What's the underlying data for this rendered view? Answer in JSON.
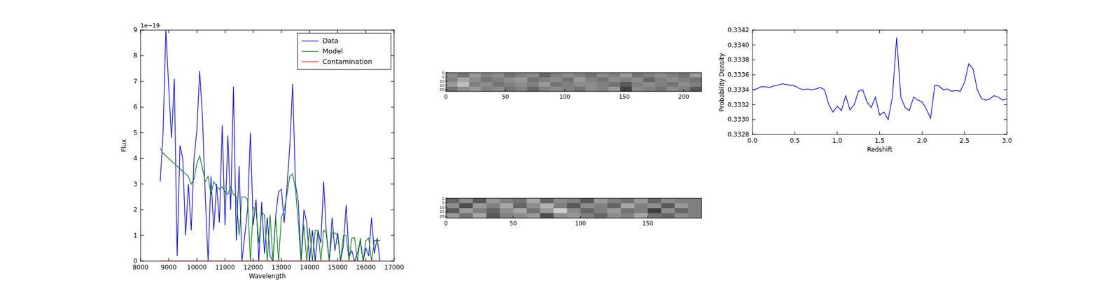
{
  "chart_data": [
    {
      "type": "line",
      "x_label": "Wavelength",
      "y_label": "Flux",
      "annotations": [
        "1e−19"
      ],
      "legend": "upper right",
      "xlim": [
        8000,
        17000
      ],
      "xticks": [
        8000,
        9000,
        10000,
        11000,
        12000,
        13000,
        14000,
        15000,
        16000,
        17000
      ],
      "ylim": [
        0,
        9
      ],
      "yticks": [
        0,
        1,
        2,
        3,
        4,
        5,
        6,
        7,
        8,
        9
      ],
      "x": [
        8700,
        8800,
        8900,
        9000,
        9100,
        9200,
        9300,
        9400,
        9500,
        9600,
        9700,
        9800,
        9900,
        10000,
        10100,
        10200,
        10300,
        10400,
        10500,
        10600,
        10700,
        10800,
        10900,
        11000,
        11100,
        11200,
        11300,
        11400,
        11500,
        11600,
        11700,
        11800,
        11900,
        12000,
        12100,
        12200,
        12300,
        12400,
        12500,
        12600,
        12700,
        12800,
        12900,
        13000,
        13100,
        13200,
        13300,
        13400,
        13500,
        13600,
        13700,
        13800,
        13900,
        14000,
        14100,
        14200,
        14300,
        14400,
        14500,
        14600,
        14700,
        14800,
        14900,
        15000,
        15100,
        15200,
        15300,
        15400,
        15500,
        15600,
        15700,
        15800,
        15900,
        16000,
        16100,
        16200,
        16300,
        16400,
        16500
      ],
      "series": [
        {
          "name": "Data",
          "color": "#0000ff",
          "values": [
            3.1,
            5.0,
            9.0,
            6.8,
            4.8,
            7.1,
            0.2,
            4.5,
            4.0,
            1.0,
            3.0,
            1.2,
            4.0,
            5.1,
            7.4,
            5.6,
            2.5,
            0,
            3.3,
            1.2,
            3.0,
            1.5,
            5.3,
            1.4,
            4.9,
            2.0,
            6.8,
            0.8,
            3.7,
            0,
            1.0,
            2.0,
            5.0,
            1.4,
            2.4,
            0,
            2.3,
            0.3,
            1.7,
            0.2,
            0,
            1.8,
            2.7,
            2.8,
            1.5,
            2.9,
            4.5,
            6.9,
            3.0,
            2.3,
            0,
            2.0,
            1.5,
            0,
            1.2,
            0,
            1.2,
            0.7,
            3.1,
            1.0,
            0,
            1.7,
            0.4,
            1.1,
            0,
            0.6,
            2.2,
            0.2,
            0.4,
            0,
            0.3,
            0.8,
            0,
            0.5,
            0.2,
            1.7,
            0.3,
            0.9,
            0
          ]
        },
        {
          "name": "Model",
          "color": "#008000",
          "values": [
            4.4,
            4.2,
            4.1,
            4.0,
            3.9,
            3.8,
            3.7,
            3.6,
            3.5,
            3.4,
            3.3,
            3.0,
            3.2,
            3.8,
            4.1,
            3.6,
            3.1,
            3.3,
            2.6,
            3.1,
            2.9,
            2.8,
            2.9,
            2.7,
            2.6,
            2.9,
            2.6,
            2.5,
            1.0,
            2.5,
            2.5,
            2.4,
            0,
            2.1,
            2.0,
            0.7,
            1.9,
            1.8,
            0,
            1.8,
            0,
            1.7,
            0,
            1.7,
            2.0,
            2.6,
            3.3,
            3.4,
            2.8,
            1.5,
            0,
            1.4,
            0,
            1.3,
            0,
            1.2,
            1.2,
            0,
            1.2,
            1.1,
            0,
            1.1,
            1.1,
            1.0,
            0,
            1.0,
            1.0,
            0,
            0.9,
            0.9,
            0,
            0.9,
            0,
            0.8,
            0.9,
            0,
            0.8,
            0.8,
            0.8
          ]
        },
        {
          "name": "Contamination",
          "color": "#ff0000",
          "x": [
            8700,
            16500
          ],
          "values": [
            0,
            0
          ]
        }
      ]
    },
    {
      "type": "image",
      "xlim": [
        0,
        215
      ],
      "xticks": [
        0,
        50,
        100,
        150,
        200
      ],
      "ylim": [
        0,
        22
      ],
      "yticks": [
        0,
        5,
        10,
        15,
        20
      ],
      "zlim": [
        -1,
        1
      ],
      "cells": [
        [
          0.1,
          -0.1,
          0.2,
          0,
          0.1,
          -0.1,
          0,
          0.1,
          -0.2,
          0,
          0.1,
          0,
          -0.1,
          0.1,
          0,
          0.2,
          -0.1,
          0,
          0.1,
          0,
          -0.1,
          0.2
        ],
        [
          0,
          0.3,
          0.1,
          -0.1,
          0,
          0.1,
          0.2,
          -0.1,
          0,
          0.1,
          -0.1,
          0.2,
          0,
          -0.1,
          0.1,
          0,
          0.1,
          -0.2,
          0,
          0.1,
          0,
          -0.1
        ],
        [
          0.2,
          0.5,
          0,
          0.1,
          -0.1,
          0,
          0.1,
          0,
          0.2,
          -0.1,
          0,
          0.1,
          0.1,
          0,
          -0.1,
          -0.3,
          0,
          0.1,
          0,
          -0.1,
          0.1,
          0
        ],
        [
          -0.1,
          0.1,
          0.2,
          0,
          0.1,
          -0.1,
          0,
          -0.2,
          0,
          0.1,
          0,
          -0.1,
          0.1,
          0,
          0.2,
          -0.5,
          0.1,
          0,
          -0.1,
          0.1,
          0,
          -0.3
        ]
      ]
    },
    {
      "type": "image",
      "xlim": [
        0,
        190
      ],
      "xticks": [
        0,
        50,
        100,
        150
      ],
      "ylim": [
        0,
        22
      ],
      "yticks": [
        0,
        5,
        10,
        15,
        20
      ],
      "zlim": [
        -1,
        1
      ],
      "cells": [
        [
          -0.2,
          0.1,
          -0.3,
          0.2,
          0,
          -0.1,
          0.3,
          -0.2,
          0.1,
          0,
          -0.3,
          0.2,
          0,
          -0.1,
          0.2,
          -0.2,
          0.1,
          0,
          0
        ],
        [
          0.1,
          -0.4,
          0.2,
          0,
          0.3,
          -0.2,
          0.1,
          0.4,
          0,
          -0.3,
          0.1,
          0,
          -0.2,
          0.3,
          0,
          0.1,
          -0.3,
          0.2,
          0
        ],
        [
          -0.3,
          0.2,
          0,
          -0.2,
          0.1,
          0.3,
          -0.1,
          0.2,
          0.6,
          0.1,
          -0.2,
          0,
          0.2,
          -0.1,
          0,
          -0.5,
          0.1,
          -0.2,
          0
        ],
        [
          0.2,
          -0.1,
          0.3,
          -0.3,
          0,
          0.1,
          0.2,
          -0.4,
          0.1,
          0.2,
          0,
          -0.2,
          0.1,
          0,
          0.3,
          -0.1,
          -0.2,
          0.1,
          0
        ]
      ]
    },
    {
      "type": "line",
      "x_label": "Redshift",
      "y_label": "Probability Density",
      "xlim": [
        0,
        3
      ],
      "xticks": [
        {
          "value": 0,
          "label": "0.0"
        },
        0.5,
        {
          "value": 1,
          "label": "1.0"
        },
        1.5,
        {
          "value": 2,
          "label": "2.0"
        },
        2.5,
        {
          "value": 3,
          "label": "3.0"
        }
      ],
      "ylim": [
        0.3328,
        0.3342
      ],
      "yticks": [
        0.3328,
        {
          "value": 0.333,
          "label": "0.3330"
        },
        0.3332,
        0.3334,
        0.3336,
        0.3338,
        {
          "value": 0.334,
          "label": "0.3340"
        },
        0.3342
      ],
      "x": [
        0,
        0.05,
        0.1,
        0.15,
        0.2,
        0.25,
        0.3,
        0.35,
        0.4,
        0.45,
        0.5,
        0.55,
        0.6,
        0.65,
        0.7,
        0.75,
        0.8,
        0.85,
        0.9,
        0.95,
        1,
        1.05,
        1.1,
        1.15,
        1.2,
        1.25,
        1.3,
        1.35,
        1.4,
        1.45,
        1.5,
        1.55,
        1.6,
        1.65,
        1.7,
        1.75,
        1.8,
        1.85,
        1.9,
        1.95,
        2,
        2.05,
        2.1,
        2.15,
        2.2,
        2.25,
        2.3,
        2.35,
        2.4,
        2.45,
        2.5,
        2.55,
        2.6,
        2.65,
        2.7,
        2.75,
        2.8,
        2.85,
        2.9,
        2.95,
        3
      ],
      "series": [
        {
          "color": "#0000ff",
          "values": [
            0.3334,
            0.33341,
            0.33344,
            0.33344,
            0.33343,
            0.33345,
            0.33346,
            0.33348,
            0.33347,
            0.33346,
            0.33345,
            0.33342,
            0.3334,
            0.33341,
            0.3334,
            0.33341,
            0.33343,
            0.3334,
            0.3332,
            0.3331,
            0.33318,
            0.33312,
            0.33332,
            0.33313,
            0.3332,
            0.33338,
            0.3334,
            0.33324,
            0.33316,
            0.3333,
            0.33306,
            0.3331,
            0.333,
            0.3333,
            0.3341,
            0.3333,
            0.33316,
            0.33312,
            0.3333,
            0.33326,
            0.33324,
            0.33314,
            0.33302,
            0.33346,
            0.33345,
            0.3334,
            0.33341,
            0.33338,
            0.33339,
            0.33338,
            0.3335,
            0.33375,
            0.33368,
            0.3334,
            0.33328,
            0.33326,
            0.33328,
            0.33332,
            0.3333,
            0.33326,
            0.33328
          ]
        }
      ]
    }
  ]
}
